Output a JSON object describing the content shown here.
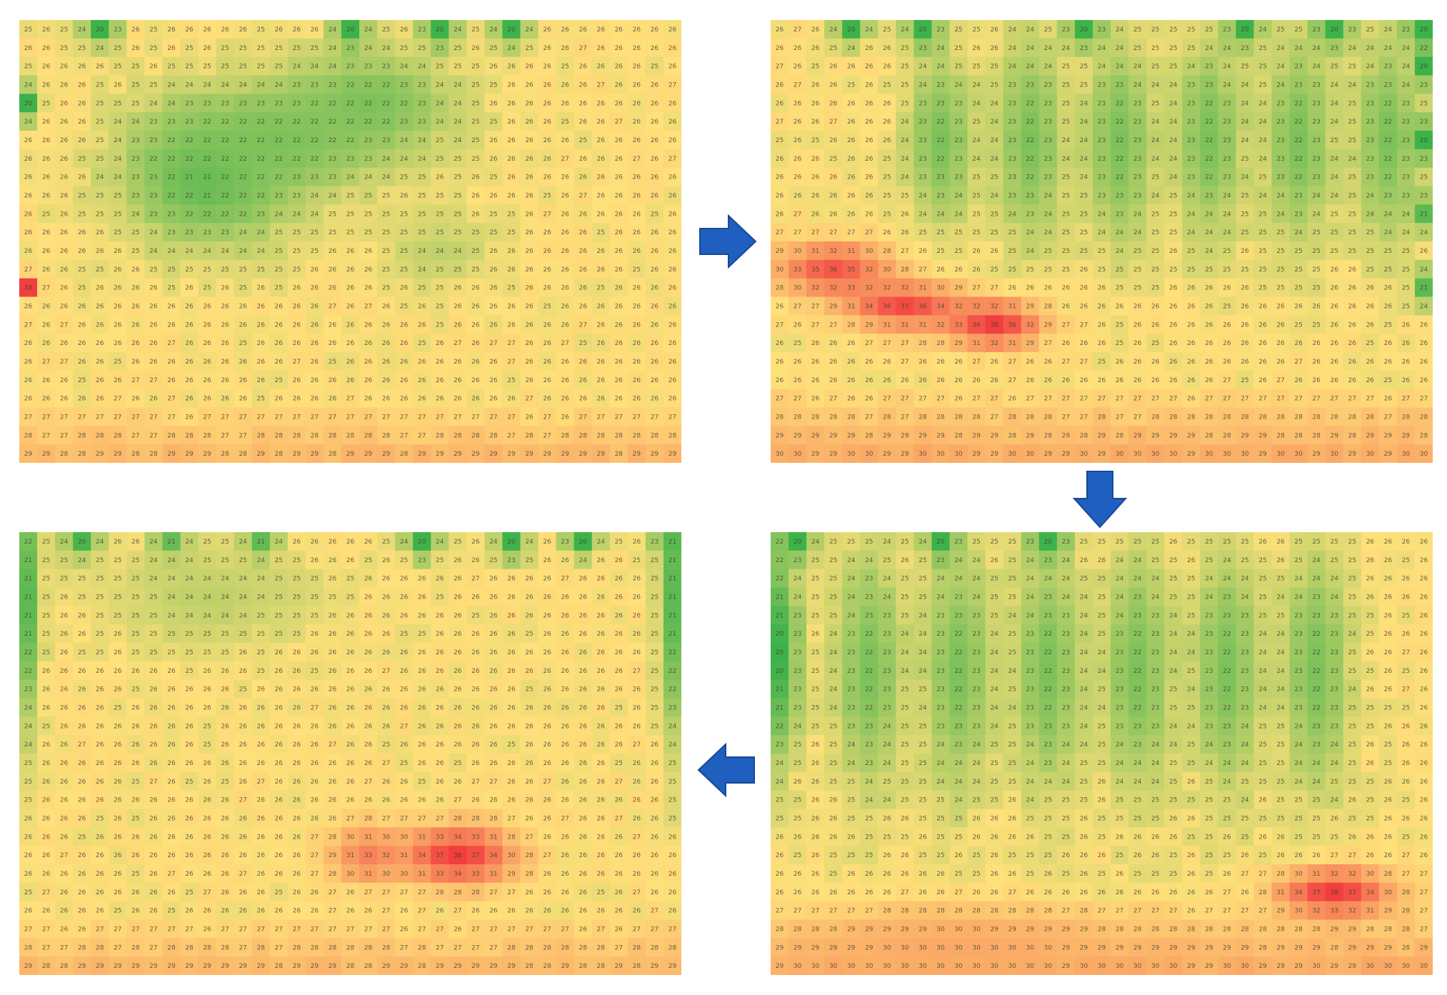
{
  "chart_data": [
    {
      "type": "heatmap",
      "panel": "top-left",
      "order": 1,
      "grid": {
        "rows": 24,
        "cols": 37
      },
      "value_range": [
        20,
        39
      ],
      "color_scale": {
        "low": "#3db24a",
        "mid": "#ffe07a",
        "high": "#f0303a"
      },
      "base_value": 26,
      "cool_spots": [
        {
          "row": 8,
          "col": 10,
          "sr": 4,
          "sc": 5,
          "v": 21
        },
        {
          "row": 6,
          "col": 14,
          "sr": 3,
          "sc": 6,
          "v": 22
        },
        {
          "row": 4,
          "col": 19,
          "sr": 3,
          "sc": 5,
          "v": 22
        },
        {
          "row": 0,
          "col": 4,
          "sr": 1,
          "sc": 1,
          "v": 20
        },
        {
          "row": 0,
          "col": 18,
          "sr": 1,
          "sc": 1,
          "v": 20
        },
        {
          "row": 0,
          "col": 23,
          "sr": 1,
          "sc": 1,
          "v": 20
        },
        {
          "row": 0,
          "col": 27,
          "sr": 1,
          "sc": 1,
          "v": 20
        },
        {
          "row": 4,
          "col": 0,
          "sr": 1,
          "sc": 0.6,
          "v": 20
        },
        {
          "row": 12,
          "col": 23,
          "sr": 2,
          "sc": 3,
          "v": 24
        }
      ],
      "hot_spots": [
        {
          "row": 14,
          "col": 0,
          "sr": 0.5,
          "sc": 0.5,
          "v": 38
        }
      ],
      "bottom_warm": 3
    },
    {
      "type": "heatmap",
      "panel": "top-right",
      "order": 2,
      "grid": {
        "rows": 24,
        "cols": 37
      },
      "value_range": [
        20,
        39
      ],
      "color_scale": {
        "low": "#3db24a",
        "mid": "#ffe07a",
        "high": "#f0303a"
      },
      "base_value": 26,
      "cool_spots": [
        {
          "row": 6,
          "col": 9,
          "sr": 5,
          "sc": 2,
          "v": 22
        },
        {
          "row": 6,
          "col": 14,
          "sr": 6,
          "sc": 2,
          "v": 22
        },
        {
          "row": 6,
          "col": 19,
          "sr": 6,
          "sc": 2,
          "v": 22
        },
        {
          "row": 6,
          "col": 24,
          "sr": 6,
          "sc": 2,
          "v": 22
        },
        {
          "row": 6,
          "col": 29,
          "sr": 6,
          "sc": 2,
          "v": 22
        },
        {
          "row": 6,
          "col": 34,
          "sr": 6,
          "sc": 2,
          "v": 22
        },
        {
          "row": 0,
          "col": 4,
          "sr": 1,
          "sc": 1,
          "v": 20
        },
        {
          "row": 0,
          "col": 8,
          "sr": 1,
          "sc": 1,
          "v": 20
        },
        {
          "row": 0,
          "col": 17,
          "sr": 1,
          "sc": 1,
          "v": 20
        },
        {
          "row": 0,
          "col": 26,
          "sr": 1,
          "sc": 1,
          "v": 20
        },
        {
          "row": 0,
          "col": 31,
          "sr": 1,
          "sc": 1,
          "v": 20
        },
        {
          "row": 0,
          "col": 36,
          "sr": 1,
          "sc": 1,
          "v": 20
        },
        {
          "row": 2,
          "col": 36,
          "sr": 1,
          "sc": 0.6,
          "v": 20
        },
        {
          "row": 6,
          "col": 36,
          "sr": 1,
          "sc": 0.6,
          "v": 20
        },
        {
          "row": 10,
          "col": 36,
          "sr": 1,
          "sc": 0.6,
          "v": 21
        },
        {
          "row": 14,
          "col": 36,
          "sr": 1,
          "sc": 0.6,
          "v": 21
        }
      ],
      "hot_spots": [
        {
          "row": 13,
          "col": 3,
          "sr": 1.4,
          "sc": 3,
          "v": 36
        },
        {
          "row": 15,
          "col": 7,
          "sr": 1.2,
          "sc": 3,
          "v": 37
        },
        {
          "row": 16,
          "col": 12,
          "sr": 1.2,
          "sc": 2.5,
          "v": 38
        }
      ],
      "bottom_warm": 4
    },
    {
      "type": "heatmap",
      "panel": "bottom-right",
      "order": 3,
      "grid": {
        "rows": 24,
        "cols": 37
      },
      "value_range": [
        20,
        39
      ],
      "color_scale": {
        "low": "#3db24a",
        "mid": "#ffe07a",
        "high": "#f0303a"
      },
      "base_value": 26,
      "cool_spots": [
        {
          "row": 7,
          "col": 5,
          "sr": 7,
          "sc": 2,
          "v": 22
        },
        {
          "row": 7,
          "col": 10,
          "sr": 7,
          "sc": 2,
          "v": 22
        },
        {
          "row": 7,
          "col": 15,
          "sr": 7,
          "sc": 2,
          "v": 22
        },
        {
          "row": 7,
          "col": 20,
          "sr": 7,
          "sc": 2,
          "v": 22
        },
        {
          "row": 7,
          "col": 25,
          "sr": 7,
          "sc": 2,
          "v": 22
        },
        {
          "row": 7,
          "col": 30,
          "sr": 7,
          "sc": 2,
          "v": 22
        },
        {
          "row": 6,
          "col": 0,
          "sr": 6,
          "sc": 1.2,
          "v": 20
        },
        {
          "row": 0,
          "col": 1,
          "sr": 1,
          "sc": 1,
          "v": 20
        },
        {
          "row": 0,
          "col": 9,
          "sr": 1,
          "sc": 1,
          "v": 20
        },
        {
          "row": 0,
          "col": 15,
          "sr": 1,
          "sc": 1,
          "v": 20
        }
      ],
      "hot_spots": [
        {
          "row": 19,
          "col": 31,
          "sr": 1.2,
          "sc": 3,
          "v": 38
        },
        {
          "row": 22,
          "col": 10,
          "sr": 2,
          "sc": 8,
          "v": 30
        }
      ],
      "bottom_warm": 4
    },
    {
      "type": "heatmap",
      "panel": "bottom-left",
      "order": 4,
      "grid": {
        "rows": 24,
        "cols": 37
      },
      "value_range": [
        20,
        39
      ],
      "color_scale": {
        "low": "#3db24a",
        "mid": "#ffe07a",
        "high": "#f0303a"
      },
      "base_value": 26,
      "cool_spots": [
        {
          "row": 0,
          "col": 3,
          "sr": 1,
          "sc": 1,
          "v": 20
        },
        {
          "row": 0,
          "col": 8,
          "sr": 1,
          "sc": 1,
          "v": 20
        },
        {
          "row": 0,
          "col": 13,
          "sr": 1,
          "sc": 1,
          "v": 20
        },
        {
          "row": 0,
          "col": 22,
          "sr": 1,
          "sc": 1,
          "v": 20
        },
        {
          "row": 0,
          "col": 27,
          "sr": 1,
          "sc": 1,
          "v": 20
        },
        {
          "row": 0,
          "col": 31,
          "sr": 1,
          "sc": 1,
          "v": 20
        },
        {
          "row": 0,
          "col": 36,
          "sr": 1,
          "sc": 1,
          "v": 20
        },
        {
          "row": 3,
          "col": 10,
          "sr": 3,
          "sc": 6,
          "v": 24
        },
        {
          "row": 3,
          "col": 0,
          "sr": 7,
          "sc": 0.7,
          "v": 21
        },
        {
          "row": 3,
          "col": 36,
          "sr": 8,
          "sc": 0.7,
          "v": 21
        }
      ],
      "hot_spots": [
        {
          "row": 17,
          "col": 24,
          "sr": 1.5,
          "sc": 3,
          "v": 38
        },
        {
          "row": 17,
          "col": 19,
          "sr": 1.5,
          "sc": 2,
          "v": 33
        }
      ],
      "bottom_warm": 3
    }
  ],
  "arrows": [
    {
      "direction": "right",
      "from": 1,
      "to": 2,
      "color": "#1f5fbf"
    },
    {
      "direction": "down",
      "from": 2,
      "to": 3,
      "color": "#1f5fbf"
    },
    {
      "direction": "left",
      "from": 3,
      "to": 4,
      "color": "#1f5fbf"
    }
  ]
}
